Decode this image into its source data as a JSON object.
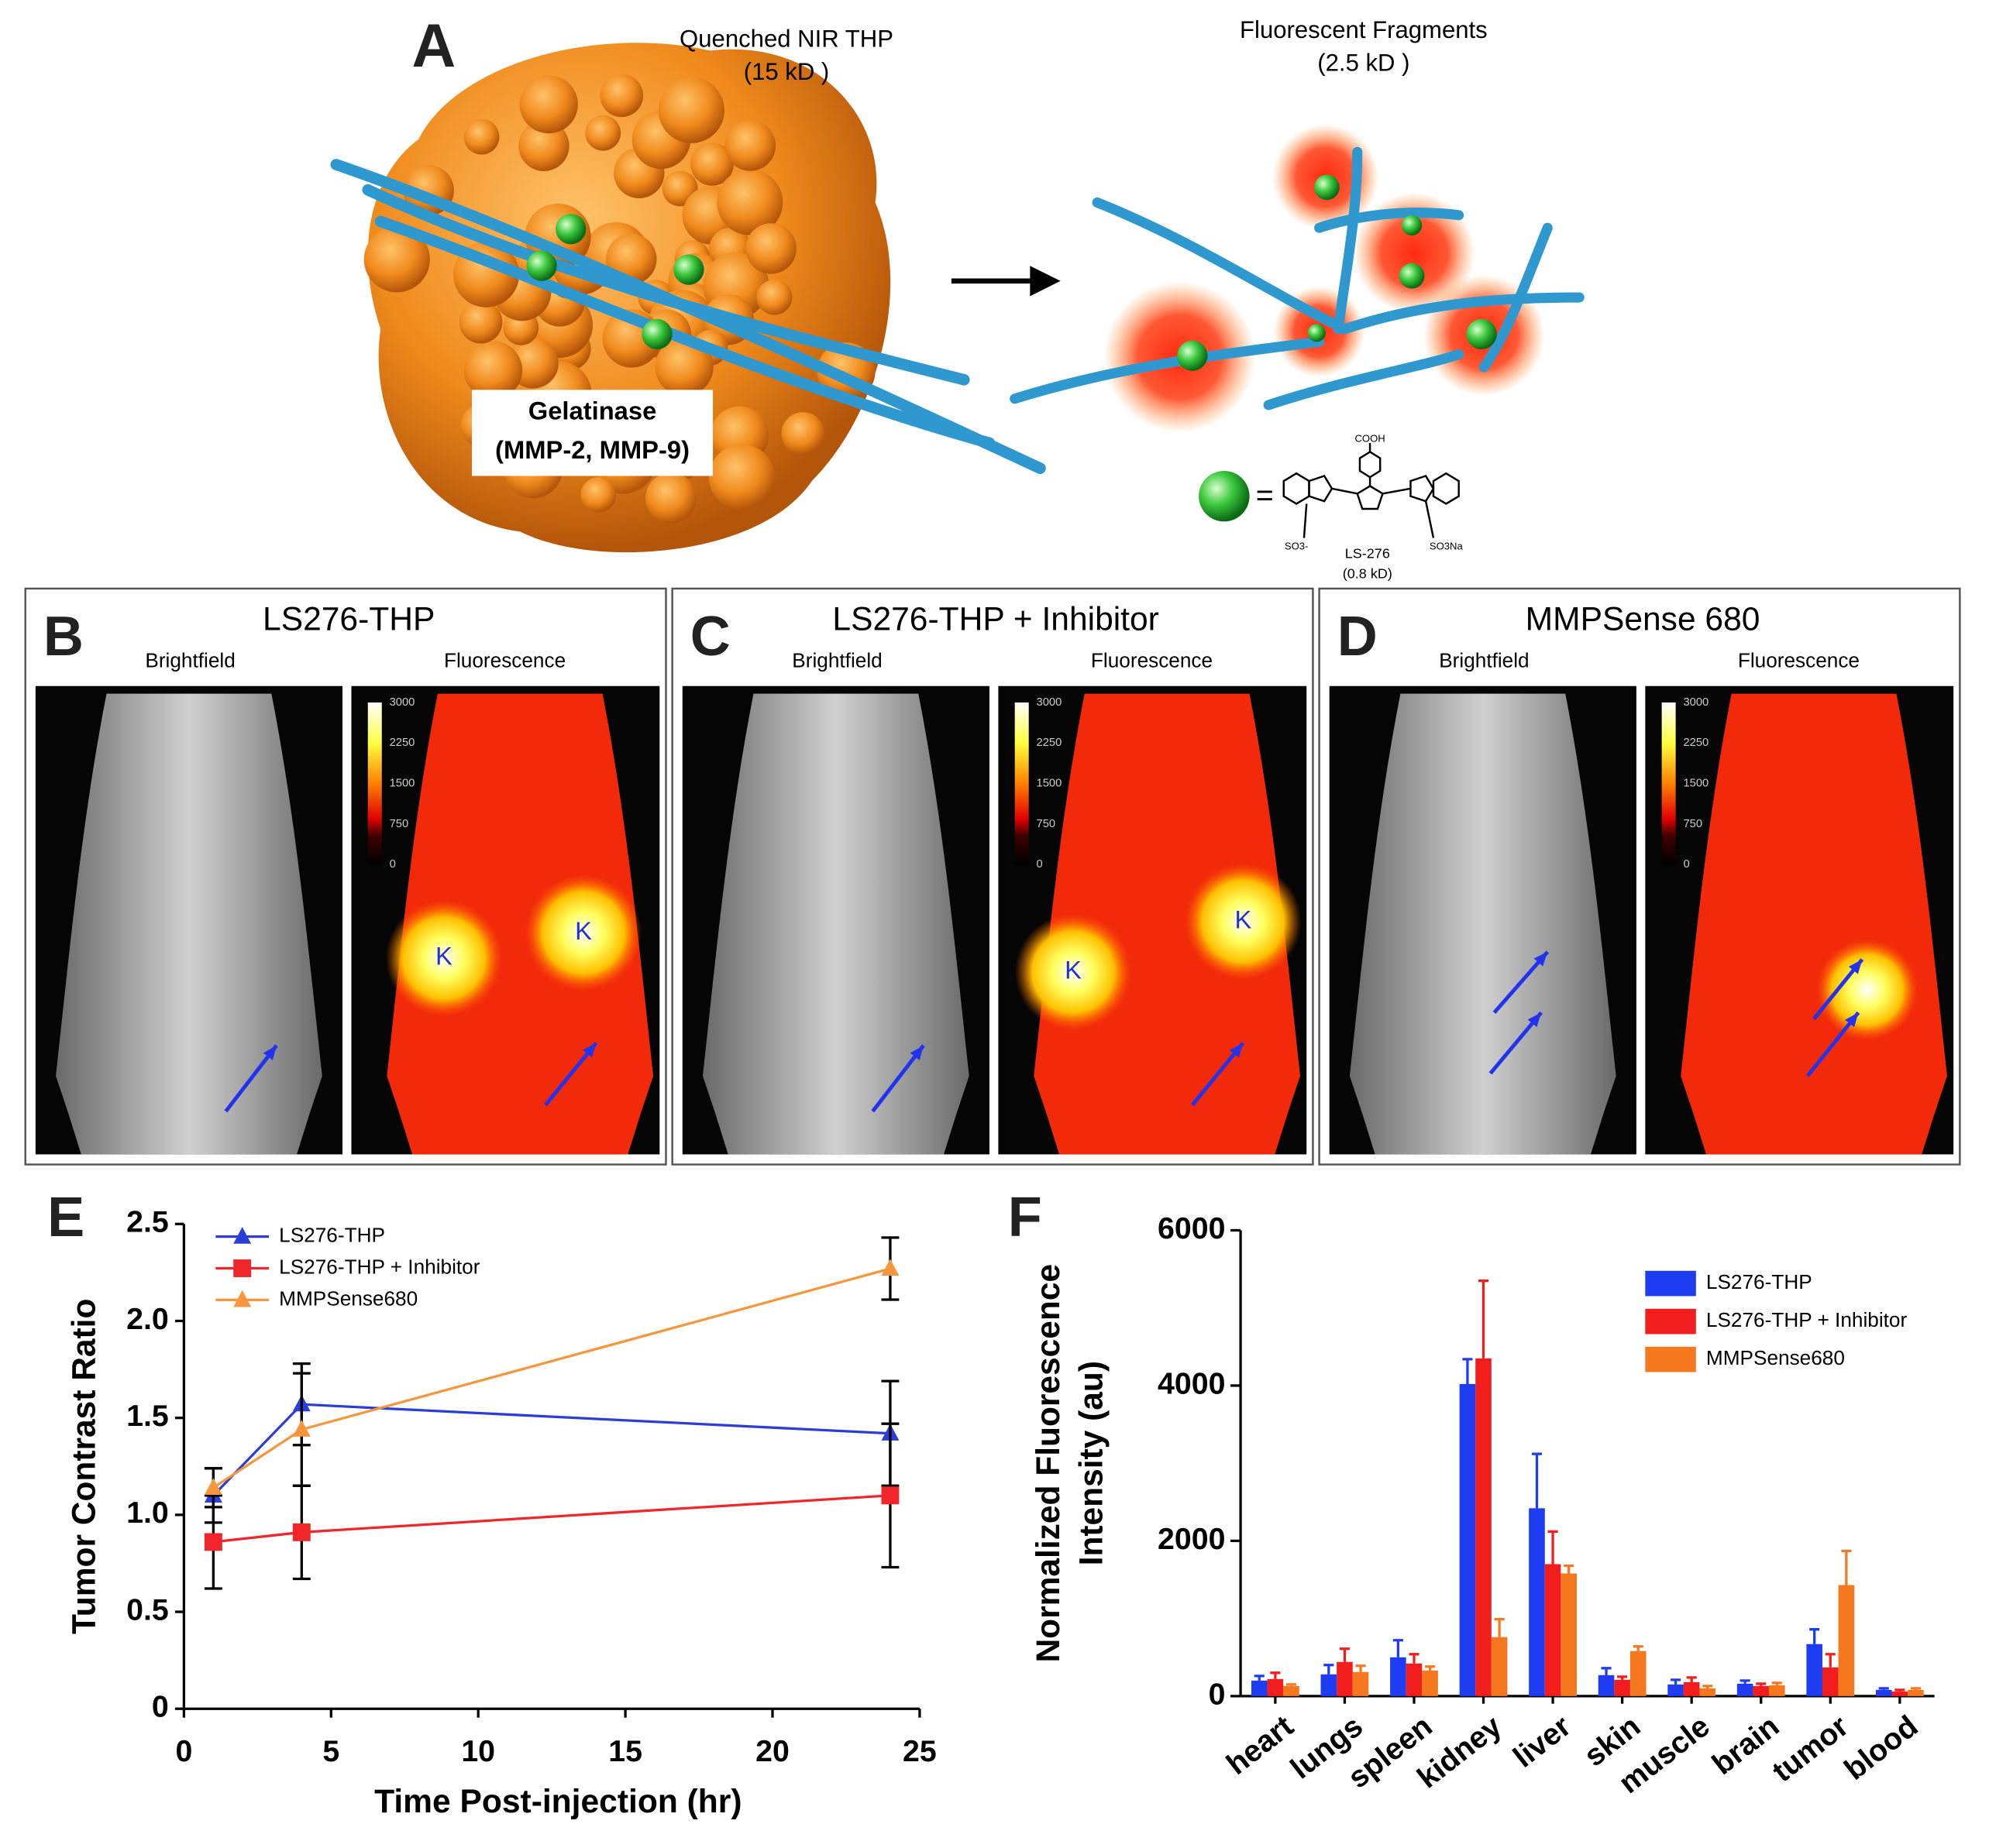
{
  "panel_labels": [
    "A",
    "B",
    "C",
    "D",
    "E",
    "F"
  ],
  "panel_a": {
    "probe_label": "Quenched NIR THP",
    "probe_mass": "(15 kD )",
    "fragments_label": "Fluorescent Fragments",
    "fragments_mass": "(2.5 kD )",
    "enzyme": "Gelatinase",
    "enzyme_types": "(MMP-2, MMP-9)",
    "equals": "=",
    "dye_name": "LS-276",
    "dye_mass": "(0.8 kD)",
    "dye_groups": [
      "COOH",
      "SO3-",
      "SO3Na"
    ]
  },
  "imaging": [
    {
      "title": "LS276-THP",
      "brightfield": "Brightfield",
      "fluorescence": "Fluorescence",
      "colorbar_ticks": [
        3000,
        2250,
        1500,
        750,
        0
      ],
      "organ_labels": [
        "K",
        "K"
      ]
    },
    {
      "title": "LS276-THP + Inhibitor",
      "brightfield": "Brightfield",
      "fluorescence": "Fluorescence",
      "colorbar_ticks": [
        3000,
        2250,
        1500,
        750,
        0
      ],
      "organ_labels": [
        "K",
        "K"
      ]
    },
    {
      "title": "MMPSense 680",
      "brightfield": "Brightfield",
      "fluorescence": "Fluorescence",
      "colorbar_ticks": [
        3000,
        2250,
        1500,
        750,
        0
      ]
    }
  ],
  "chart_data": [
    {
      "type": "line",
      "x_label": "Time Post-injection (hr)",
      "y_label": "Tumor Contrast Ratio",
      "x": [
        1,
        4,
        24
      ],
      "xlim": [
        0,
        25
      ],
      "xticks": [
        0,
        5,
        10,
        15,
        20,
        25
      ],
      "ylim": [
        0,
        2.5
      ],
      "yticks": [
        0,
        0.5,
        {
          "value": 1,
          "label": "1.0"
        },
        1.5,
        {
          "value": 2,
          "label": "2.0"
        },
        2.5
      ],
      "legend": "upper left",
      "series": [
        {
          "name": "LS276-THP",
          "color": "#2b3fd6",
          "marker": "triangle",
          "values": [
            1.1,
            1.57,
            1.42
          ],
          "errors": [
            0.14,
            0.21,
            0.27
          ]
        },
        {
          "name": "LS276-THP + Inhibitor",
          "color": "#f0262a",
          "marker": "square",
          "values": [
            0.86,
            0.91,
            1.1
          ],
          "errors": [
            0.24,
            0.24,
            0.37
          ]
        },
        {
          "name": "MMPSense680",
          "color": "#f7963c",
          "marker": "triangle",
          "values": [
            1.14,
            1.44,
            2.27
          ],
          "errors": [
            0.1,
            0.29,
            0.16
          ]
        }
      ]
    },
    {
      "type": "bar",
      "y_label": [
        "Normalized Fluorescence",
        "Intensity (au)"
      ],
      "categories": [
        "heart",
        "lungs",
        "spleen",
        "kidney",
        "liver",
        "skin",
        "muscle",
        "brain",
        "tumor",
        "blood"
      ],
      "ylim": [
        0,
        6000
      ],
      "yticks": [
        0,
        2000,
        4000,
        6000
      ],
      "legend": "upper right",
      "series": [
        {
          "name": "LS276-THP",
          "color": "#1e3cf2",
          "values": [
            200,
            280,
            500,
            4020,
            2420,
            270,
            150,
            160,
            670,
            80
          ],
          "errors": [
            60,
            120,
            220,
            320,
            700,
            90,
            60,
            40,
            190,
            20
          ]
        },
        {
          "name": "LS276-THP + Inhibitor",
          "color": "#f21e1e",
          "values": [
            220,
            440,
            420,
            4350,
            1700,
            210,
            180,
            130,
            370,
            60
          ],
          "errors": [
            80,
            170,
            120,
            1000,
            420,
            40,
            60,
            30,
            170,
            20
          ]
        },
        {
          "name": "MMPSense680",
          "color": "#f5781e",
          "values": [
            130,
            310,
            330,
            760,
            1580,
            580,
            100,
            140,
            1430,
            80
          ],
          "errors": [
            20,
            80,
            50,
            230,
            100,
            60,
            30,
            30,
            440,
            20
          ]
        }
      ]
    }
  ]
}
